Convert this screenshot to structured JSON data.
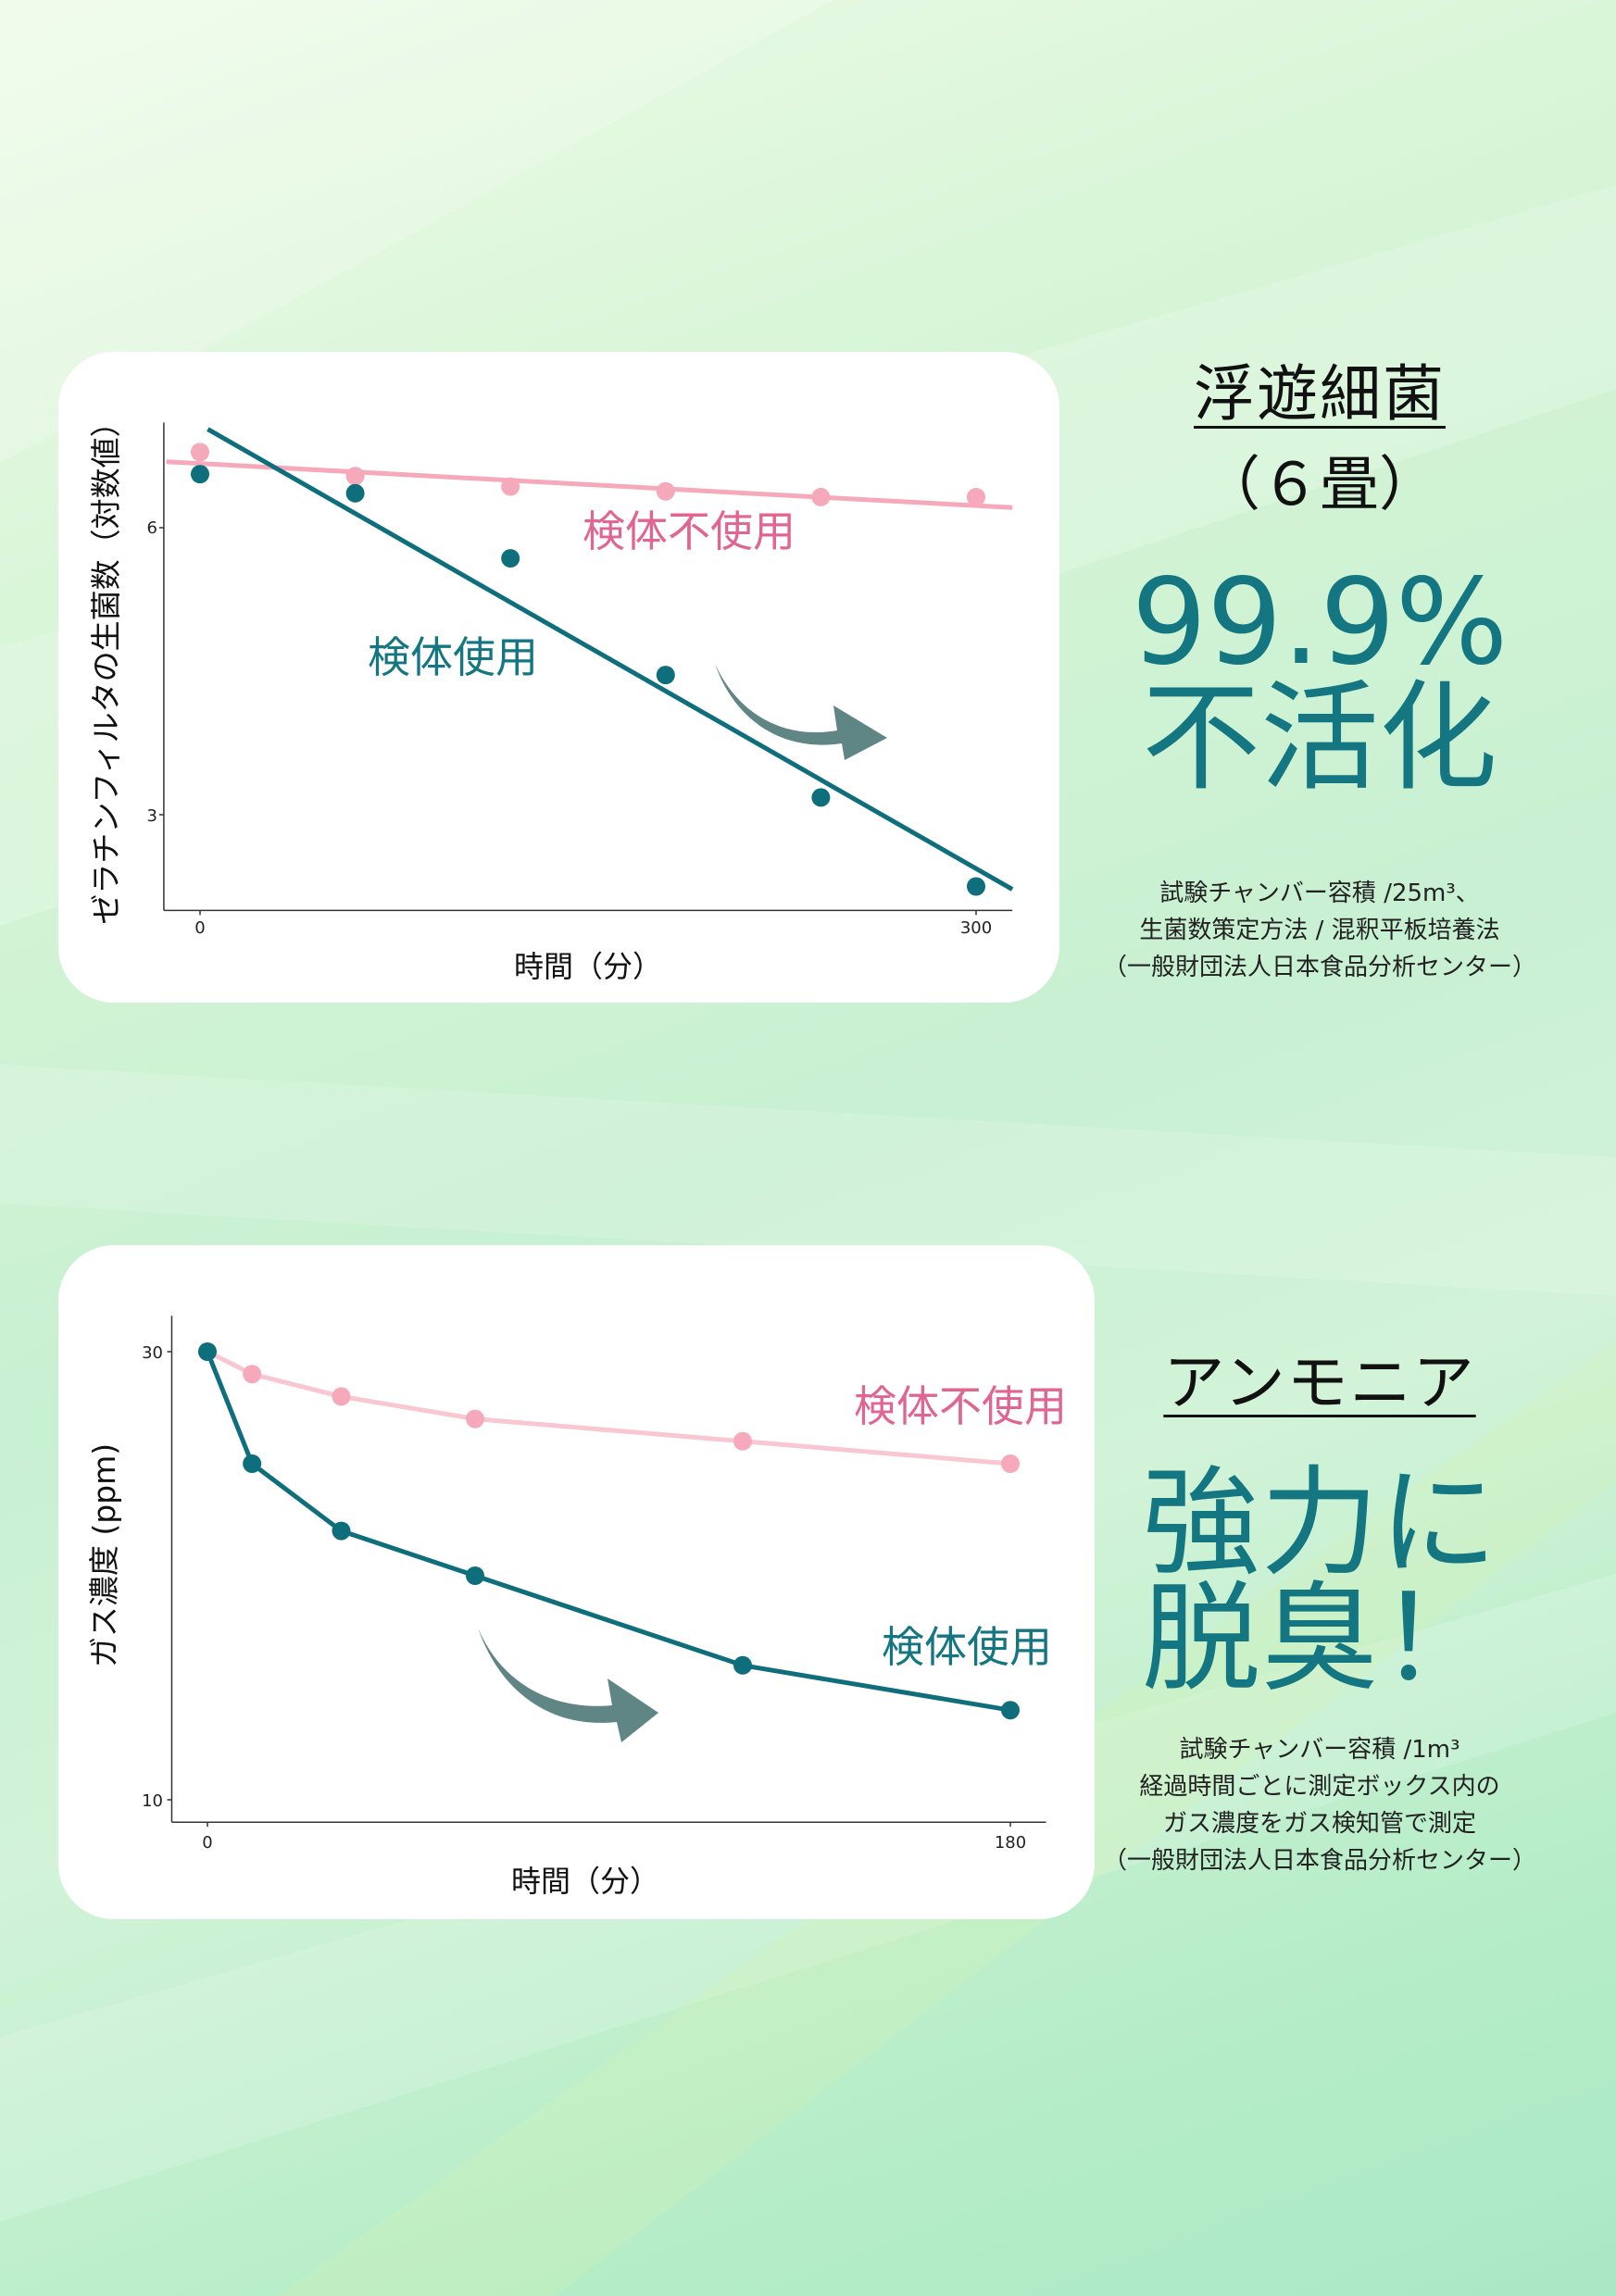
{
  "colors": {
    "teal": "#0f6e7c",
    "pink": "#f5a9bb",
    "pink_label": "#e06590",
    "big_text": "#137680",
    "arrow": "#5f8585"
  },
  "section1": {
    "heading": "浮遊細菌",
    "subheading": "（６畳）",
    "headline_line1": "99.9%",
    "headline_line2": "不活化",
    "notes": [
      "試験チャンバー容積 /25m³、",
      "生菌数策定方法 / 混釈平板培養法",
      "（一般財団法人日本食品分析センター）"
    ]
  },
  "section2": {
    "heading": "アンモニア",
    "headline_line1": "強力に",
    "headline_line2": "脱臭！",
    "notes": [
      "試験チャンバー容積 /1m³",
      "経過時間ごとに測定ボックス内の",
      "ガス濃度をガス検知管で測定",
      "（一般財団法人日本食品分析センター）"
    ]
  },
  "chart_data": [
    {
      "type": "scatter",
      "xlabel": "時間（分）",
      "ylabel": "ゼラチンフィルタの生菌数（対数値）",
      "xticks": [
        "0",
        "300"
      ],
      "yticks": [
        "6",
        "3"
      ],
      "xlim": [
        -14,
        314
      ],
      "ylim": [
        2.0,
        7.1
      ],
      "grid": false,
      "x": [
        0,
        60,
        120,
        180,
        240,
        300
      ],
      "series": [
        {
          "name": "検体不使用",
          "color": "#f5a9bb",
          "values": [
            6.79,
            6.54,
            6.43,
            6.38,
            6.32,
            6.32
          ],
          "trendline": [
            [
              -13,
              6.69
            ],
            [
              314,
              6.21
            ]
          ]
        },
        {
          "name": "検体使用",
          "color": "#0f6e7c",
          "values": [
            6.56,
            6.36,
            5.68,
            4.46,
            3.18,
            2.25
          ],
          "trendline": [
            [
              3,
              7.03
            ],
            [
              314,
              2.22
            ]
          ]
        }
      ]
    },
    {
      "type": "line",
      "xlabel": "時間（分）",
      "ylabel": "ガス濃度 (ppm)",
      "xticks": [
        "0",
        "180"
      ],
      "yticks": [
        "30",
        "10"
      ],
      "xlim": [
        -8,
        188
      ],
      "ylim": [
        9,
        31.6
      ],
      "grid": false,
      "x": [
        0,
        10,
        30,
        60,
        120,
        180
      ],
      "series": [
        {
          "name": "検体不使用",
          "color": "#f5a9bb",
          "values": [
            30,
            29,
            28,
            27,
            26,
            25
          ]
        },
        {
          "name": "検体使用",
          "color": "#0f6e7c",
          "values": [
            30,
            25,
            22,
            20,
            16,
            14
          ]
        }
      ]
    }
  ]
}
